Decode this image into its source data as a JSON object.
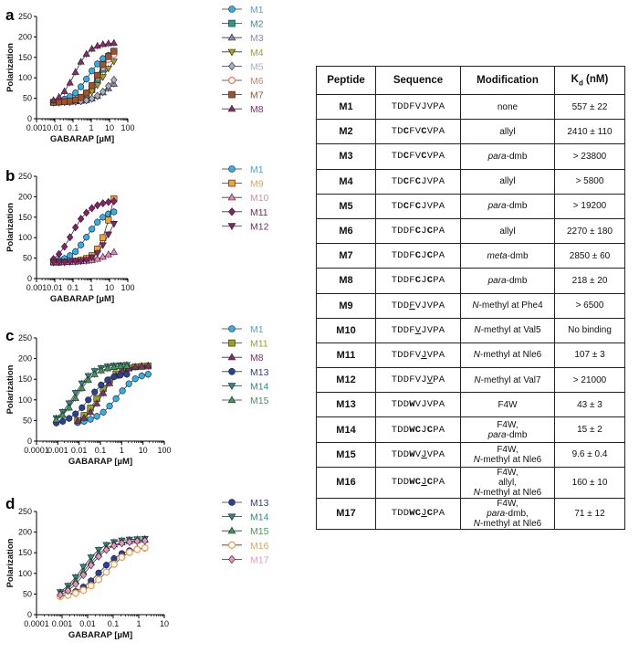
{
  "colors": {
    "M1": "#33aee8",
    "M2": "#2a9a8e",
    "M3": "#8b86c4",
    "M4": "#a6a01f",
    "M5": "#a8b0c4",
    "M6": "#e27b6a",
    "M7": "#a0522d",
    "M8": "#8b2a6e",
    "M9": "#f5a030",
    "M10": "#f27ec0",
    "M11": "#8a1f6a",
    "M12": "#8a1f6a",
    "M11c": "#9aa21d",
    "M13": "#2b3f9c",
    "M14": "#2b8a8a",
    "M15": "#3a9a5a",
    "M16": "#f0a050",
    "M17": "#f090c8"
  },
  "chart_data": [
    {
      "type": "scatter",
      "panel": "a",
      "xlabel": "GABARAP [µM]",
      "ylabel": "Polarization",
      "xscale": "log",
      "xlim": [
        0.001,
        100
      ],
      "ylim": [
        0,
        250
      ],
      "xticks": [
        "0.001",
        "0.01",
        "0.1",
        "1",
        "10",
        "100"
      ],
      "yticks": [
        "0",
        "50",
        "100",
        "150",
        "200",
        "250"
      ],
      "x": [
        0.0085,
        0.017,
        0.034,
        0.068,
        0.136,
        0.27,
        0.54,
        1.08,
        2.17,
        4.34,
        8.7,
        17.4
      ],
      "series": [
        {
          "name": "M1",
          "marker": "circle",
          "color": "M1",
          "values": [
            42,
            45,
            48,
            54,
            63,
            78,
            97,
            117,
            134,
            147,
            155,
            160
          ]
        },
        {
          "name": "M2",
          "marker": "square",
          "color": "M2",
          "values": [
            40,
            41,
            42,
            43,
            45,
            49,
            57,
            71,
            93,
            121,
            147,
            165
          ]
        },
        {
          "name": "M3",
          "marker": "triangle-up",
          "color": "M3",
          "values": [
            40,
            40,
            41,
            41,
            42,
            43,
            45,
            49,
            55,
            64,
            74,
            85
          ]
        },
        {
          "name": "M4",
          "marker": "triangle-down",
          "color": "M4",
          "values": [
            40,
            40,
            41,
            42,
            44,
            48,
            55,
            66,
            82,
            102,
            123,
            140
          ]
        },
        {
          "name": "M5",
          "marker": "diamond",
          "color": "M5",
          "values": [
            40,
            40,
            41,
            41,
            42,
            43,
            45,
            49,
            56,
            66,
            80,
            95
          ]
        },
        {
          "name": "M6",
          "marker": "circle-open",
          "color": "M6",
          "values": [
            40,
            41,
            42,
            43,
            46,
            51,
            62,
            79,
            103,
            127,
            145,
            157
          ]
        },
        {
          "name": "M7",
          "marker": "square",
          "color": "M7",
          "values": [
            40,
            41,
            42,
            43,
            46,
            52,
            63,
            81,
            106,
            132,
            152,
            165
          ]
        },
        {
          "name": "M8",
          "marker": "triangle-up",
          "color": "M8",
          "values": [
            45,
            53,
            67,
            88,
            114,
            139,
            158,
            171,
            178,
            182,
            184,
            185
          ]
        }
      ]
    },
    {
      "type": "scatter",
      "panel": "b",
      "xlabel": "GABARAP [µM]",
      "ylabel": "Polarization",
      "xscale": "log",
      "xlim": [
        0.001,
        100
      ],
      "ylim": [
        0,
        250
      ],
      "xticks": [
        "0.001",
        "0.01",
        "0.1",
        "1",
        "10",
        "100"
      ],
      "yticks": [
        "0",
        "50",
        "100",
        "150",
        "200",
        "250"
      ],
      "x": [
        0.0085,
        0.017,
        0.034,
        0.068,
        0.136,
        0.27,
        0.54,
        1.08,
        2.17,
        4.34,
        8.7,
        17.4
      ],
      "series": [
        {
          "name": "M1",
          "marker": "circle",
          "color": "M1",
          "values": [
            42,
            45,
            49,
            56,
            66,
            82,
            101,
            121,
            138,
            150,
            158,
            163
          ]
        },
        {
          "name": "M9",
          "marker": "square",
          "color": "M9",
          "values": [
            40,
            40,
            41,
            42,
            43,
            45,
            49,
            56,
            72,
            100,
            143,
            195
          ]
        },
        {
          "name": "M10",
          "marker": "triangle-up",
          "color": "M10",
          "values": [
            40,
            40,
            40,
            41,
            41,
            42,
            43,
            45,
            48,
            53,
            59,
            65
          ]
        },
        {
          "name": "M11",
          "marker": "diamond",
          "color": "M11",
          "values": [
            48,
            60,
            78,
            101,
            125,
            146,
            161,
            172,
            179,
            184,
            187,
            189
          ]
        },
        {
          "name": "M12",
          "marker": "triangle-down",
          "color": "M12",
          "values": [
            40,
            40,
            40,
            41,
            42,
            43,
            46,
            52,
            62,
            82,
            108,
            134
          ]
        }
      ]
    },
    {
      "type": "scatter",
      "panel": "c",
      "xlabel": "GABARAP [µM]",
      "ylabel": "Polarization",
      "xscale": "log",
      "xlim": [
        0.0001,
        100
      ],
      "ylim": [
        0,
        250
      ],
      "xticks": [
        "0.0001",
        "0.001",
        "0.01",
        "0.1",
        "1",
        "10",
        "100"
      ],
      "yticks": [
        "0",
        "50",
        "100",
        "150",
        "200",
        "250"
      ],
      "series": [
        {
          "name": "M1",
          "marker": "circle",
          "color": "M1",
          "x": [
            0.0085,
            0.017,
            0.034,
            0.068,
            0.136,
            0.27,
            0.54,
            1.08,
            2.17,
            4.34,
            8.7,
            17.4
          ],
          "values": [
            45,
            48,
            53,
            60,
            70,
            85,
            103,
            122,
            139,
            151,
            158,
            162
          ]
        },
        {
          "name": "M11",
          "marker": "square",
          "color": "M11c",
          "x": [
            0.0085,
            0.017,
            0.034,
            0.068,
            0.136,
            0.27,
            0.54,
            1.08,
            2.17,
            4.34,
            8.7,
            17.4
          ],
          "values": [
            50,
            62,
            80,
            103,
            127,
            148,
            163,
            172,
            177,
            180,
            181,
            182
          ]
        },
        {
          "name": "M8",
          "marker": "triangle-up",
          "color": "M8",
          "x": [
            0.0085,
            0.017,
            0.034,
            0.068,
            0.136,
            0.27,
            0.54,
            1.08,
            2.17,
            4.34,
            8.7,
            17.4
          ],
          "values": [
            48,
            56,
            70,
            91,
            116,
            140,
            158,
            170,
            176,
            180,
            182,
            183
          ]
        },
        {
          "name": "M13",
          "marker": "circle",
          "color": "M13",
          "x": [
            0.00085,
            0.0017,
            0.0034,
            0.0068,
            0.0136,
            0.027,
            0.054,
            0.108,
            0.217,
            0.434,
            0.87,
            1.74
          ],
          "values": [
            44,
            48,
            55,
            66,
            81,
            100,
            119,
            136,
            148,
            156,
            160,
            162
          ]
        },
        {
          "name": "M14",
          "marker": "triangle-down",
          "color": "M14",
          "x": [
            0.00085,
            0.0017,
            0.0034,
            0.0068,
            0.0136,
            0.027,
            0.054,
            0.108,
            0.217,
            0.434,
            0.87,
            1.74
          ],
          "values": [
            56,
            71,
            92,
            117,
            140,
            158,
            170,
            177,
            181,
            183,
            184,
            185
          ]
        },
        {
          "name": "M15",
          "marker": "triangle-up",
          "color": "M15",
          "x": [
            0.00085,
            0.0017,
            0.0034,
            0.0068,
            0.0136,
            0.027,
            0.054,
            0.108,
            0.217,
            0.434,
            0.87,
            1.74
          ],
          "values": [
            52,
            63,
            81,
            104,
            128,
            148,
            162,
            171,
            176,
            179,
            181,
            182
          ]
        }
      ]
    },
    {
      "type": "scatter",
      "panel": "d",
      "xlabel": "GABARAP [µM]",
      "ylabel": "Polarization",
      "xscale": "log",
      "xlim": [
        0.0001,
        10
      ],
      "ylim": [
        0,
        250
      ],
      "xticks": [
        "0.0001",
        "0.001",
        "0.01",
        "0.1",
        "1",
        "10"
      ],
      "yticks": [
        "0",
        "50",
        "100",
        "150",
        "200",
        "250"
      ],
      "x": [
        0.00085,
        0.0017,
        0.0034,
        0.0068,
        0.0136,
        0.027,
        0.054,
        0.108,
        0.217,
        0.434,
        0.87,
        1.74
      ],
      "series": [
        {
          "name": "M13",
          "marker": "circle",
          "color": "M13",
          "values": [
            45,
            49,
            56,
            67,
            82,
            101,
            120,
            136,
            148,
            155,
            159,
            161
          ]
        },
        {
          "name": "M14",
          "marker": "triangle-down",
          "color": "M14",
          "values": [
            55,
            70,
            91,
            116,
            139,
            157,
            169,
            176,
            180,
            182,
            183,
            184
          ]
        },
        {
          "name": "M15",
          "marker": "triangle-up",
          "color": "M15",
          "values": [
            52,
            63,
            81,
            104,
            127,
            147,
            161,
            170,
            175,
            178,
            180,
            181
          ]
        },
        {
          "name": "M16",
          "marker": "circle-open",
          "color": "M16",
          "values": [
            44,
            47,
            52,
            59,
            70,
            85,
            103,
            122,
            139,
            151,
            158,
            162
          ]
        },
        {
          "name": "M17",
          "marker": "diamond",
          "color": "M17",
          "values": [
            48,
            58,
            74,
            96,
            120,
            141,
            157,
            167,
            173,
            176,
            178,
            179
          ]
        }
      ]
    }
  ],
  "table": {
    "headers": [
      "Peptide",
      "Sequence",
      "Modification",
      "Kd (nM)"
    ],
    "rows": [
      {
        "peptide": "M1",
        "sequence": "TDDFVJVPA",
        "modification": "none",
        "kd": "557 ± 22"
      },
      {
        "peptide": "M2",
        "sequence": "TDCFVCVPA",
        "modification": "allyl",
        "kd": "2410 ± 110"
      },
      {
        "peptide": "M3",
        "sequence": "TDCFVCVPA",
        "modification": "para-dmb",
        "kd": "> 23800"
      },
      {
        "peptide": "M4",
        "sequence": "TDCFCJVPA",
        "modification": "allyl",
        "kd": "> 5800"
      },
      {
        "peptide": "M5",
        "sequence": "TDCFCJVPA",
        "modification": "para-dmb",
        "kd": "> 19200"
      },
      {
        "peptide": "M6",
        "sequence": "TDDFCJCPA",
        "modification": "allyl",
        "kd": "2270 ± 180"
      },
      {
        "peptide": "M7",
        "sequence": "TDDFCJCPA",
        "modification": "meta-dmb",
        "kd": "2850 ± 60"
      },
      {
        "peptide": "M8",
        "sequence": "TDDFCJCPA",
        "modification": "para-dmb",
        "kd": "218 ± 20"
      },
      {
        "peptide": "M9",
        "sequence": "TDDFVJVPA",
        "modification": "N-methyl at Phe4",
        "kd": "> 6500"
      },
      {
        "peptide": "M10",
        "sequence": "TDDFVJVPA",
        "modification": "N-methyl at Val5",
        "kd": "No binding"
      },
      {
        "peptide": "M11",
        "sequence": "TDDFVJVPA",
        "modification": "N-methyl at Nle6",
        "kd": "107 ± 3"
      },
      {
        "peptide": "M12",
        "sequence": "TDDFVJVPA",
        "modification": "N-methyl at Val7",
        "kd": "> 21000"
      },
      {
        "peptide": "M13",
        "sequence": "TDDWVJVPA",
        "modification": "F4W",
        "kd": "43 ± 3"
      },
      {
        "peptide": "M14",
        "sequence": "TDDWCJCPA",
        "modification": "F4W, para-dmb",
        "kd": "15 ± 2"
      },
      {
        "peptide": "M15",
        "sequence": "TDDWVJVPA",
        "modification": "F4W, N-methyl at Nle6",
        "kd": "9.6 ± 0.4"
      },
      {
        "peptide": "M16",
        "sequence": "TDDWCJCPA",
        "modification": "F4W, allyl, N-methyl at Nle6",
        "kd": "160 ± 10"
      },
      {
        "peptide": "M17",
        "sequence": "TDDWCJCPA",
        "modification": "F4W, para-dmb, N-methyl at Nle6",
        "kd": "71 ± 12"
      }
    ]
  }
}
